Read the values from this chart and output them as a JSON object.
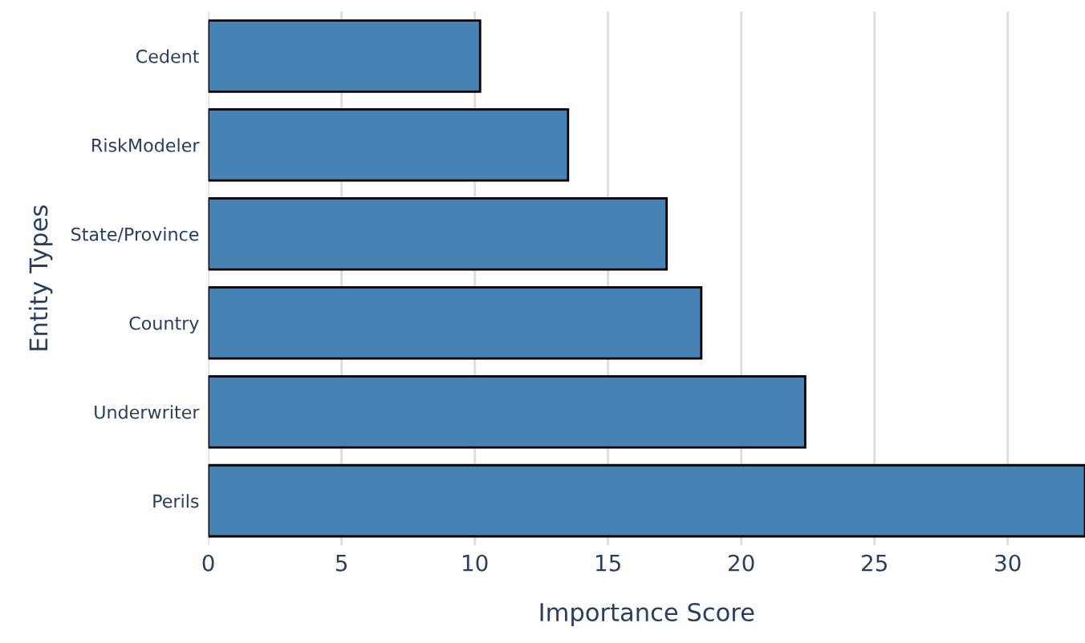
{
  "chart_data": {
    "type": "bar",
    "orientation": "horizontal",
    "xlabel": "Importance Score",
    "ylabel": "Entity Types",
    "categories": [
      "Cedent",
      "RiskModeler",
      "State/Province",
      "Country",
      "Underwriter",
      "Perils"
    ],
    "values": [
      10.2,
      13.5,
      17.2,
      18.5,
      22.4,
      32.9
    ],
    "color": "#4682b4",
    "xlim": [
      0,
      32.9
    ],
    "xticks": [
      0,
      5,
      10,
      15,
      20,
      25,
      30
    ],
    "grid": "x"
  }
}
